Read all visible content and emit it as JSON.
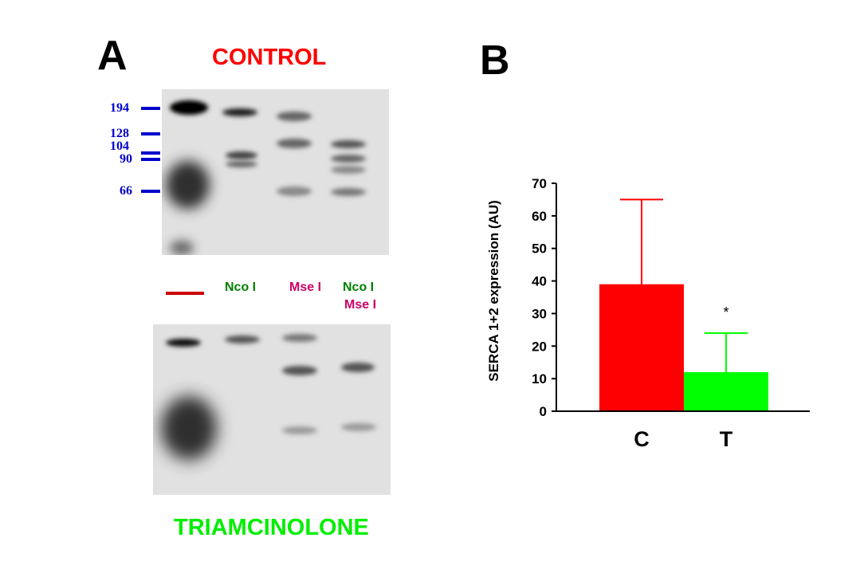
{
  "panel_a": {
    "label": "A",
    "title_top": "CONTROL",
    "title_bottom": "TRIAMCINOLONE",
    "markers": [
      "194",
      "128",
      "104",
      "90",
      "66"
    ],
    "lanes": [
      {
        "label": "",
        "color": "#cc0000"
      },
      {
        "label": "Nco I",
        "color": "#008000"
      },
      {
        "label": "Mse I",
        "color": "#cc0066"
      },
      {
        "label": "Nco I",
        "label2": "Mse I",
        "color": "#008000",
        "color2": "#cc0066"
      }
    ],
    "colors": {
      "control": "#ff0000",
      "triamcinolone": "#00ee00",
      "markers": "#0000cc"
    }
  },
  "panel_b": {
    "label": "B"
  },
  "chart_data": {
    "type": "bar",
    "categories": [
      "C",
      "T"
    ],
    "values": [
      39,
      12
    ],
    "error_upper": [
      65,
      24
    ],
    "colors": [
      "#ff0000",
      "#00ff00"
    ],
    "ylabel": "SERCA 1+2 expression (AU)",
    "xlabel": "",
    "ylim": [
      0,
      70
    ],
    "yticks": [
      "0",
      "10",
      "20",
      "30",
      "40",
      "50",
      "60",
      "70"
    ],
    "annotations": [
      {
        "category": "T",
        "text": "*"
      }
    ],
    "grid": false
  }
}
